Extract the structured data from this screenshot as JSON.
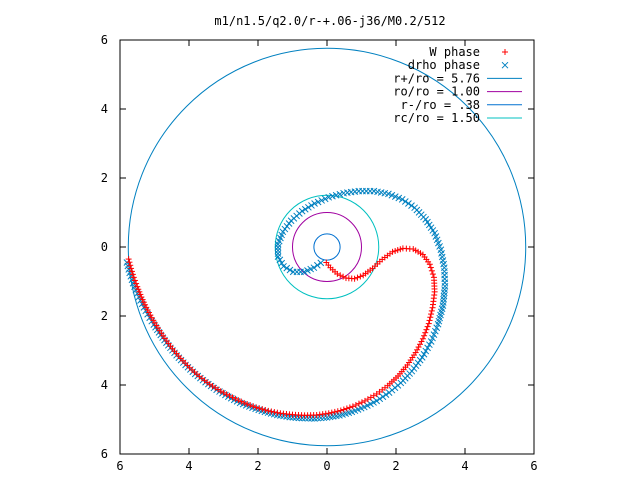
{
  "chart_data": {
    "type": "scatter",
    "title": "m1/n1.5/q2.0/r-+.06-j36/M0.2/512",
    "xlabel": "",
    "ylabel": "",
    "xlim": [
      -6,
      6
    ],
    "ylim": [
      -6,
      6
    ],
    "xticks": [
      -6,
      -4,
      -2,
      0,
      2,
      4,
      6
    ],
    "yticks": [
      6,
      4,
      2,
      0,
      -2,
      -4,
      -6
    ],
    "xtick_labels": [
      "6",
      "4",
      "2",
      "0",
      "2",
      "4",
      "6"
    ],
    "ytick_labels": [
      "6",
      "4",
      "2",
      "0",
      "2",
      "4",
      "6"
    ],
    "grid": false,
    "legend_position": "top-right",
    "series": [
      {
        "name": "W phase",
        "kind": "points",
        "marker": "plus",
        "color": "#ff0000",
        "points": [
          [
            -5.75,
            -0.35
          ],
          [
            -5.68,
            -0.62
          ],
          [
            -5.6,
            -0.88
          ],
          [
            -5.5,
            -1.15
          ],
          [
            -5.38,
            -1.45
          ],
          [
            -5.24,
            -1.75
          ],
          [
            -5.08,
            -2.05
          ],
          [
            -4.9,
            -2.35
          ],
          [
            -4.7,
            -2.65
          ],
          [
            -4.48,
            -2.95
          ],
          [
            -4.24,
            -3.23
          ],
          [
            -3.98,
            -3.5
          ],
          [
            -3.7,
            -3.75
          ],
          [
            -3.4,
            -3.98
          ],
          [
            -3.08,
            -4.18
          ],
          [
            -2.74,
            -4.36
          ],
          [
            -2.4,
            -4.52
          ],
          [
            -2.05,
            -4.65
          ],
          [
            -1.7,
            -4.75
          ],
          [
            -1.35,
            -4.82
          ],
          [
            -1.0,
            -4.86
          ],
          [
            -0.65,
            -4.88
          ],
          [
            -0.3,
            -4.87
          ],
          [
            0.05,
            -4.82
          ],
          [
            0.4,
            -4.74
          ],
          [
            0.75,
            -4.62
          ],
          [
            1.1,
            -4.46
          ],
          [
            1.44,
            -4.26
          ],
          [
            1.76,
            -4.02
          ],
          [
            2.06,
            -3.74
          ],
          [
            2.33,
            -3.42
          ],
          [
            2.57,
            -3.06
          ],
          [
            2.78,
            -2.66
          ],
          [
            2.95,
            -2.22
          ],
          [
            3.06,
            -1.76
          ],
          [
            3.12,
            -1.3
          ],
          [
            3.1,
            -0.88
          ],
          [
            2.98,
            -0.5
          ],
          [
            2.78,
            -0.22
          ],
          [
            2.5,
            -0.06
          ],
          [
            2.2,
            -0.04
          ],
          [
            1.9,
            -0.14
          ],
          [
            1.6,
            -0.36
          ],
          [
            1.32,
            -0.62
          ],
          [
            1.05,
            -0.82
          ],
          [
            0.8,
            -0.92
          ],
          [
            0.55,
            -0.9
          ],
          [
            0.3,
            -0.78
          ],
          [
            0.1,
            -0.6
          ],
          [
            -0.02,
            -0.45
          ]
        ]
      },
      {
        "name": "drho phase",
        "kind": "points",
        "marker": "cross",
        "color": "#0080c0",
        "points": [
          [
            -5.8,
            -0.45
          ],
          [
            -5.72,
            -0.75
          ],
          [
            -5.62,
            -1.05
          ],
          [
            -5.5,
            -1.35
          ],
          [
            -5.36,
            -1.65
          ],
          [
            -5.2,
            -1.95
          ],
          [
            -5.02,
            -2.25
          ],
          [
            -4.82,
            -2.55
          ],
          [
            -4.6,
            -2.85
          ],
          [
            -4.36,
            -3.14
          ],
          [
            -4.1,
            -3.42
          ],
          [
            -3.82,
            -3.68
          ],
          [
            -3.52,
            -3.92
          ],
          [
            -3.2,
            -4.14
          ],
          [
            -2.86,
            -4.34
          ],
          [
            -2.52,
            -4.52
          ],
          [
            -2.16,
            -4.66
          ],
          [
            -1.8,
            -4.78
          ],
          [
            -1.44,
            -4.87
          ],
          [
            -1.08,
            -4.93
          ],
          [
            -0.72,
            -4.96
          ],
          [
            -0.36,
            -4.97
          ],
          [
            0.0,
            -4.94
          ],
          [
            0.36,
            -4.88
          ],
          [
            0.72,
            -4.78
          ],
          [
            1.08,
            -4.64
          ],
          [
            1.44,
            -4.46
          ],
          [
            1.8,
            -4.22
          ],
          [
            2.14,
            -3.94
          ],
          [
            2.46,
            -3.6
          ],
          [
            2.76,
            -3.2
          ],
          [
            3.02,
            -2.74
          ],
          [
            3.22,
            -2.24
          ],
          [
            3.36,
            -1.7
          ],
          [
            3.42,
            -1.14
          ],
          [
            3.4,
            -0.6
          ],
          [
            3.3,
            -0.08
          ],
          [
            3.12,
            0.4
          ],
          [
            2.86,
            0.8
          ],
          [
            2.54,
            1.14
          ],
          [
            2.18,
            1.38
          ],
          [
            1.78,
            1.54
          ],
          [
            1.36,
            1.62
          ],
          [
            0.92,
            1.62
          ],
          [
            0.48,
            1.56
          ],
          [
            0.05,
            1.44
          ],
          [
            -0.36,
            1.26
          ],
          [
            -0.72,
            1.04
          ],
          [
            -1.04,
            0.76
          ],
          [
            -1.28,
            0.44
          ],
          [
            -1.42,
            0.08
          ],
          [
            -1.42,
            -0.28
          ],
          [
            -1.26,
            -0.56
          ],
          [
            -0.98,
            -0.72
          ],
          [
            -0.66,
            -0.72
          ],
          [
            -0.38,
            -0.6
          ],
          [
            -0.18,
            -0.46
          ]
        ]
      },
      {
        "name": "r+/ro = 5.76",
        "kind": "circle",
        "radius": 5.76,
        "color": "#0080c0"
      },
      {
        "name": "ro/ro = 1.00",
        "kind": "circle",
        "radius": 1.0,
        "color": "#a000a0"
      },
      {
        "name": "r-/ro = .38",
        "kind": "circle",
        "radius": 0.38,
        "color": "#0070d0"
      },
      {
        "name": "rc/ro = 1.50",
        "kind": "circle",
        "radius": 1.5,
        "color": "#00c0c0"
      }
    ]
  }
}
